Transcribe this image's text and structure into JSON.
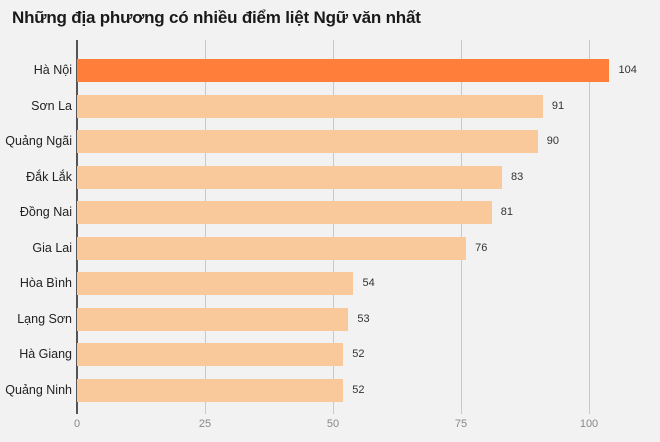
{
  "header": {
    "title": "Những địa phương có nhiều điểm liệt Ngữ văn nhất"
  },
  "colors": {
    "highlight": "#ff7f3a",
    "normal": "#f9c99b",
    "background": "#f2f2f2"
  },
  "axis": {
    "ticks": [
      "0",
      "25",
      "50",
      "75",
      "100"
    ]
  },
  "rows": [
    {
      "label": "Hà Nội",
      "value": "104"
    },
    {
      "label": "Sơn La",
      "value": "91"
    },
    {
      "label": "Quảng Ngãi",
      "value": "90"
    },
    {
      "label": "Đắk Lắk",
      "value": "83"
    },
    {
      "label": "Đồng Nai",
      "value": "81"
    },
    {
      "label": "Gia Lai",
      "value": "76"
    },
    {
      "label": "Hòa Bình",
      "value": "54"
    },
    {
      "label": "Lạng Sơn",
      "value": "53"
    },
    {
      "label": "Hà Giang",
      "value": "52"
    },
    {
      "label": "Quảng Ninh",
      "value": "52"
    }
  ],
  "chart_data": {
    "type": "bar",
    "orientation": "horizontal",
    "title": "Những địa phương có nhiều điểm liệt Ngữ văn nhất",
    "categories": [
      "Hà Nội",
      "Sơn La",
      "Quảng Ngãi",
      "Đắk Lắk",
      "Đồng Nai",
      "Gia Lai",
      "Hòa Bình",
      "Lạng Sơn",
      "Hà Giang",
      "Quảng Ninh"
    ],
    "values": [
      104,
      91,
      90,
      83,
      81,
      76,
      54,
      53,
      52,
      52
    ],
    "xlabel": "",
    "ylabel": "",
    "xlim": [
      0,
      110
    ],
    "xticks": [
      0,
      25,
      50,
      75,
      100
    ],
    "grid": true,
    "legend": null,
    "highlight": "Hà Nội",
    "data_labels": true
  }
}
